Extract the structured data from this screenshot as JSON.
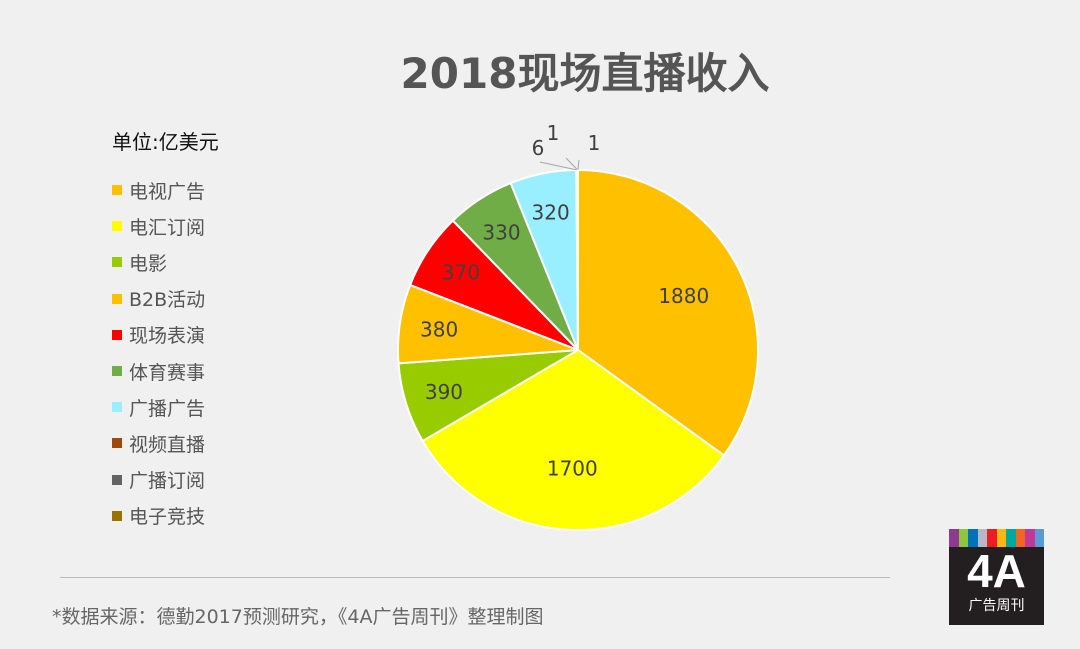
{
  "chart_data": {
    "type": "pie",
    "title": "2018现场直播收入",
    "unit_label": "单位:亿美元",
    "categories": [
      "电视广告",
      "电汇订阅",
      "电影",
      "B2B活动",
      "现场表演",
      "体育赛事",
      "广播广告",
      "视频直播",
      "广播订阅",
      "电子竞技"
    ],
    "values": [
      1880,
      1700,
      390,
      380,
      370,
      330,
      320,
      6,
      1,
      1
    ],
    "colors": [
      "#ffc000",
      "#ffff00",
      "#99cc00",
      "#ffc000",
      "#ff0000",
      "#70ad47",
      "#99eeff",
      "#9e480e",
      "#636363",
      "#997300"
    ],
    "legend_position": "left"
  },
  "footer": {
    "source": "*数据来源：德勤2017预测研究，《4A广告周刊》整理制图"
  },
  "logo": {
    "main": "4A",
    "sub": "广告周刊",
    "bar_colors": [
      "#8e3a8e",
      "#8dc63f",
      "#0072bc",
      "#b7b7c7",
      "#ed1c24",
      "#fdb913",
      "#00a99d",
      "#f26522",
      "#c2389a",
      "#5b9bd5"
    ]
  }
}
